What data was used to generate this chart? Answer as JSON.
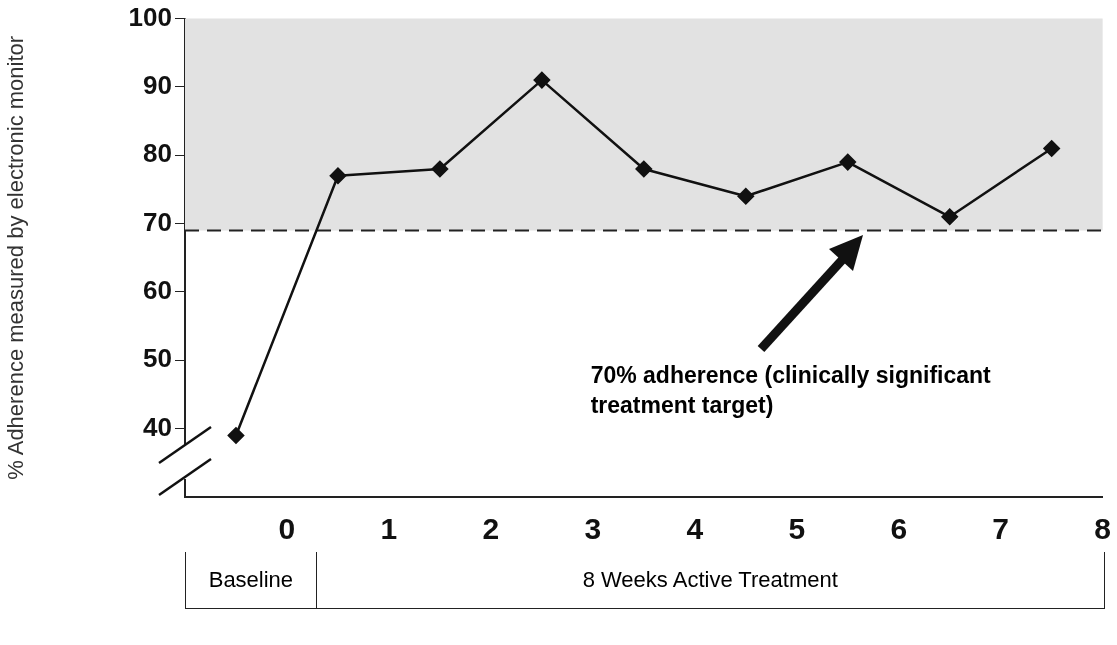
{
  "chart_data": {
    "type": "line",
    "ylabel": "% Adherence measured by electronic monitor",
    "x": [
      -0.5,
      0.5,
      1.5,
      2.5,
      3.5,
      4.5,
      5.5,
      6.5,
      7.5
    ],
    "series": [
      {
        "color": "#111111",
        "values": [
          39,
          77,
          78,
          91,
          78,
          74,
          79,
          71,
          81
        ]
      }
    ],
    "xlim": [
      -1,
      8
    ],
    "xticks": [
      {
        "value": -1,
        "label": null
      },
      0,
      1,
      2,
      3,
      4,
      5,
      6,
      7,
      8
    ],
    "ylim": [
      30,
      100
    ],
    "yticks": [
      40,
      50,
      60,
      70,
      80,
      90,
      100
    ],
    "marker": "diamond",
    "line_style": "solid",
    "grid": false,
    "legend": false,
    "bands": [
      {
        "axis": "y",
        "from": 69,
        "to": 100,
        "color": "#e2e2e2"
      }
    ],
    "ref_lines": [
      {
        "axis": "y",
        "value": 69,
        "color": "#222222",
        "line_style": "dashed"
      }
    ],
    "annotations": [
      "70% adherence (clinically significant treatment target)",
      "Baseline",
      "8 Weeks Active Treatment"
    ]
  }
}
